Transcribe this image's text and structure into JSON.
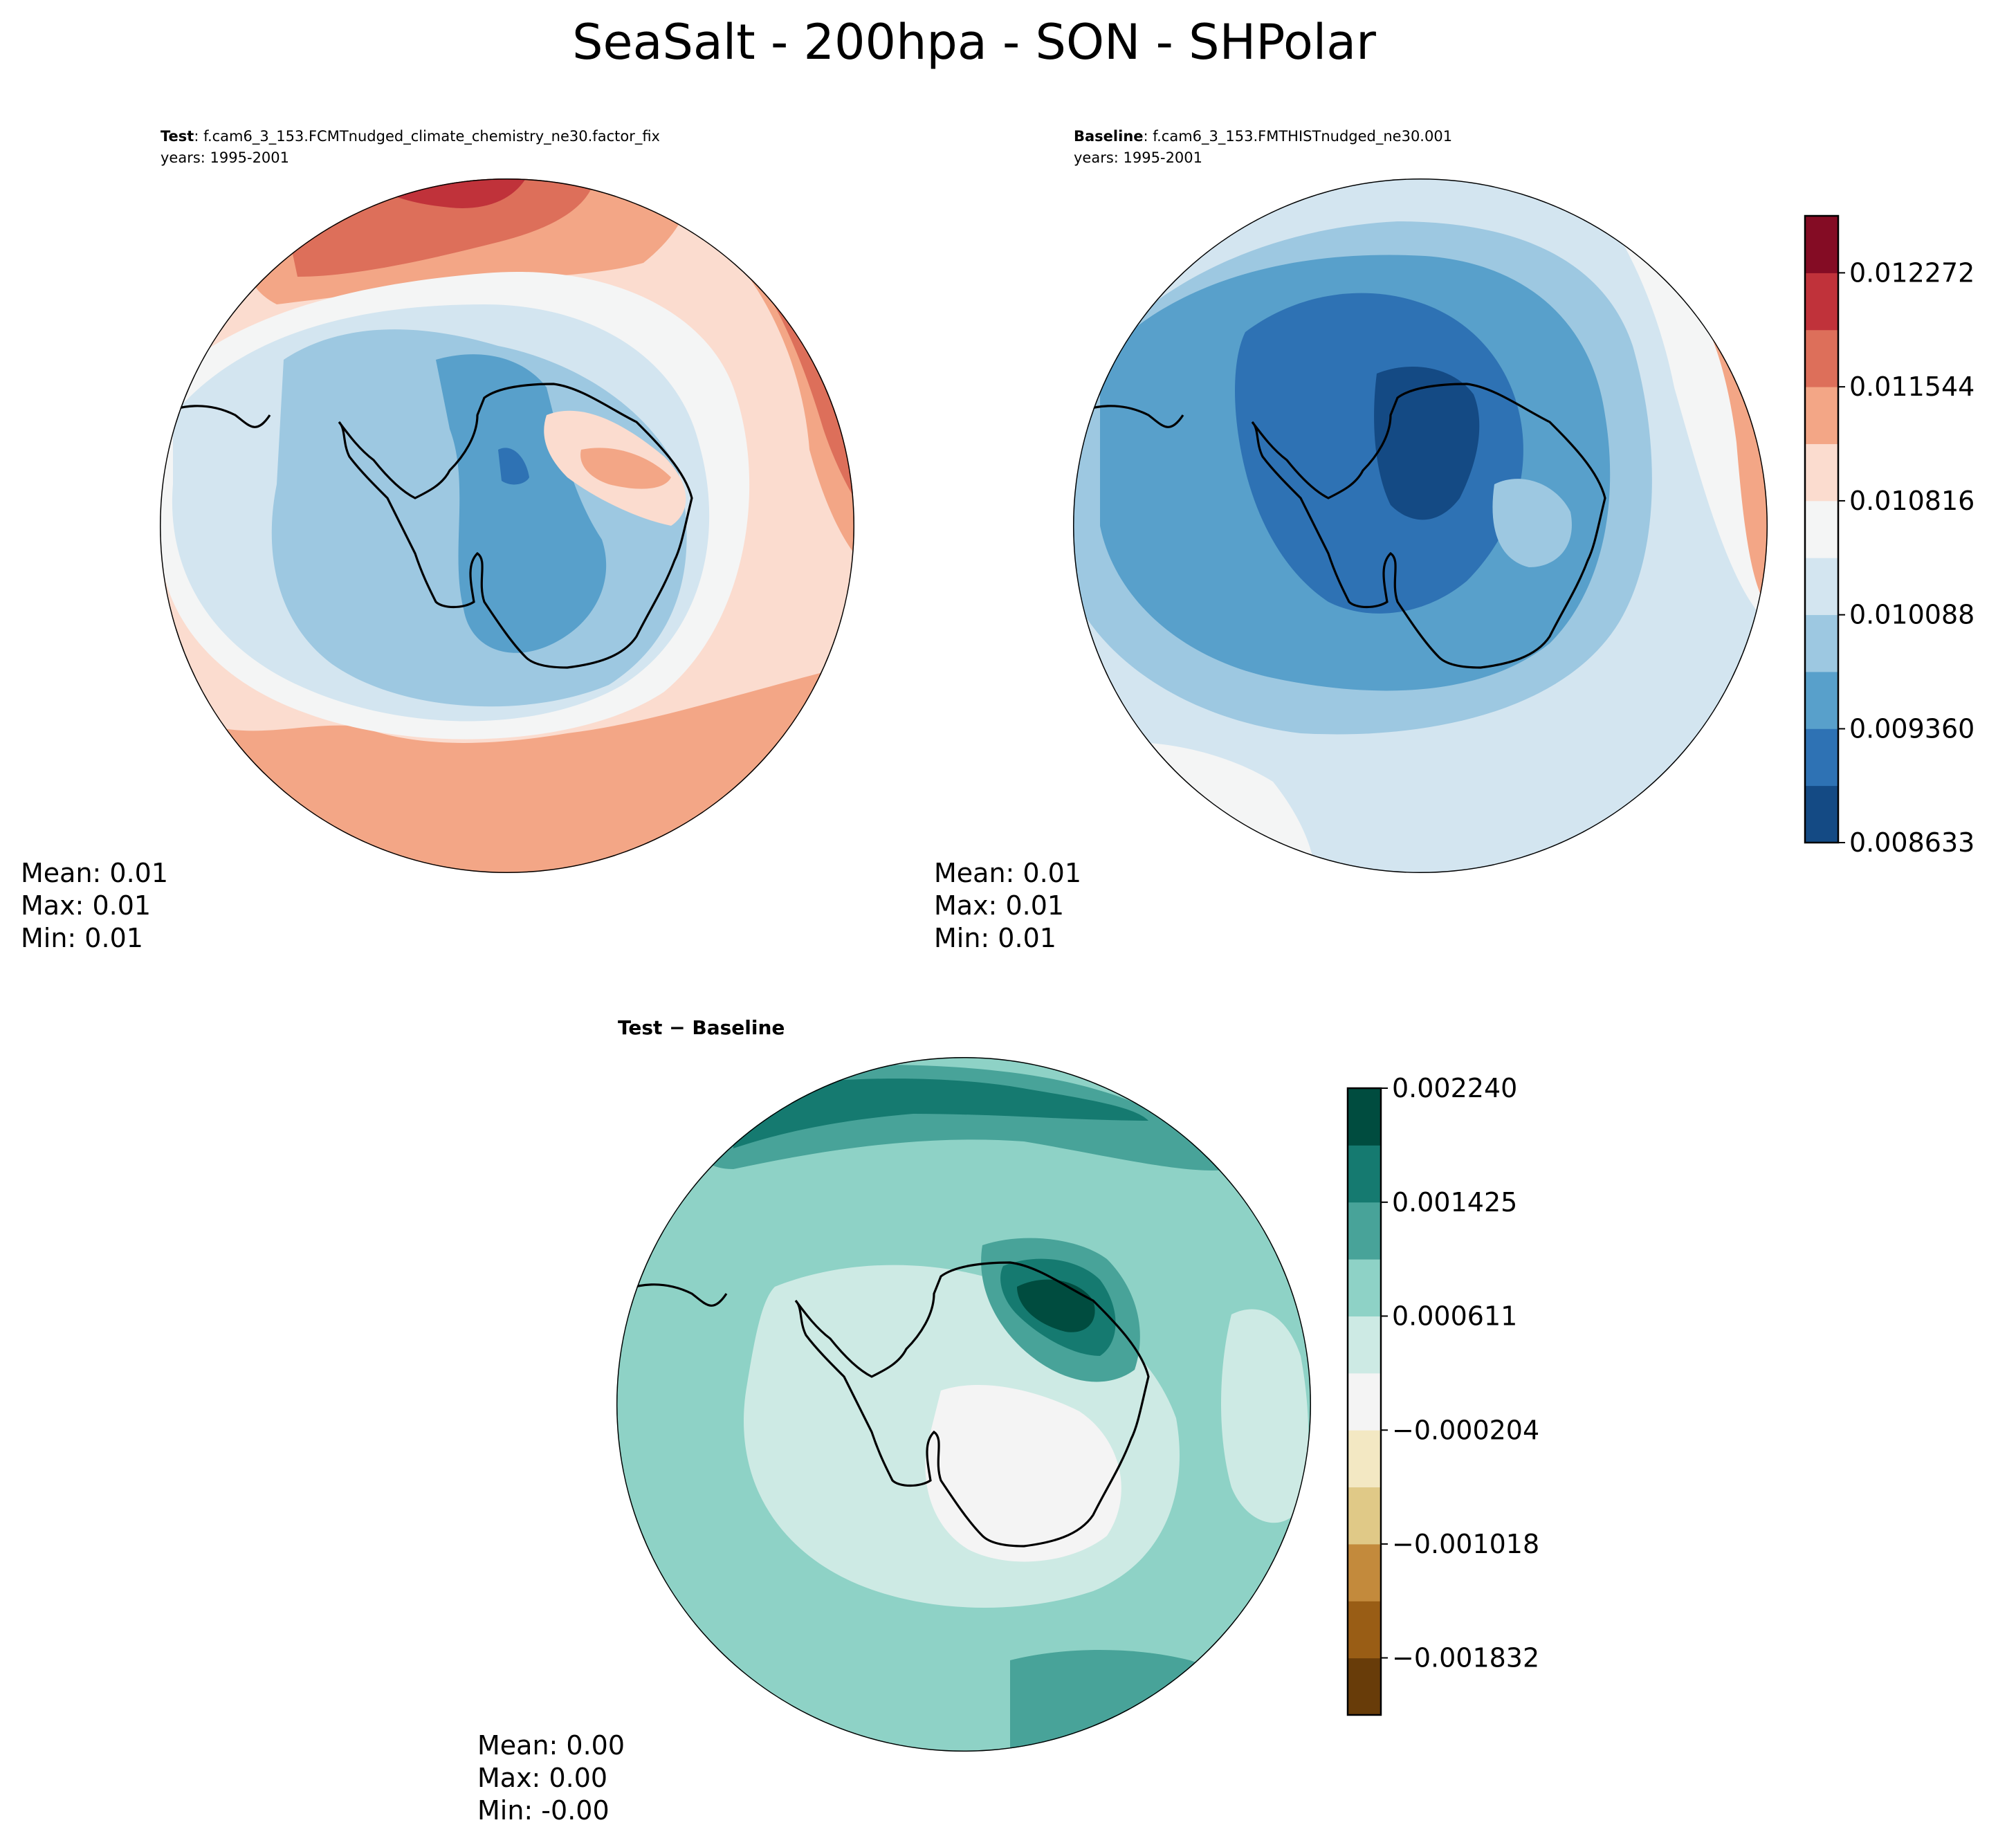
{
  "title": "SeaSalt - 200hpa - SON - SHPolar",
  "colors": {
    "rdbu": [
      "#144a84",
      "#2e72b4",
      "#58a0cb",
      "#9dc8e1",
      "#d3e5f0",
      "#f4f5f5",
      "#fbdccf",
      "#f3a686",
      "#dd6f5a",
      "#c0323a",
      "#840c24"
    ],
    "brbg": [
      "#683c09",
      "#995d15",
      "#c38a3c",
      "#e0c987",
      "#f3e8c3",
      "#f4f4f4",
      "#cdeae4",
      "#8ed2c6",
      "#48a399",
      "#157a70",
      "#004c3f"
    ],
    "coast": "#000000"
  },
  "panels": {
    "test": {
      "label": "Test",
      "case": ": f.cam6_3_153.FCMTnudged_climate_chemistry_ne30.factor_fix",
      "years": "years: 1995-2001",
      "mean": "Mean:  0.01",
      "max": "Max:  0.01",
      "min": "Min:  0.01"
    },
    "baseline": {
      "label": "Baseline",
      "case": ": f.cam6_3_153.FMTHISTnudged_ne30.001",
      "years": "years: 1995-2001",
      "mean": "Mean:  0.01",
      "max": "Max:  0.01",
      "min": "Min:  0.01"
    },
    "diff": {
      "label": "Test − Baseline",
      "mean": "Mean:  0.00",
      "max": "Max:  0.00",
      "min": "Min: -0.00"
    }
  },
  "chart_data": [
    {
      "type": "contourf",
      "panel": "Test",
      "projection": "south polar stereographic",
      "colormap": "RdBu_r",
      "levels_min": 0.008633,
      "levels_max": 0.012636,
      "num_levels": 12,
      "tick_labels": [
        "0.008633",
        "0.009360",
        "0.010088",
        "0.010816",
        "0.011544",
        "0.012272"
      ],
      "stats": {
        "mean": 0.01,
        "max": 0.01,
        "min": 0.01
      }
    },
    {
      "type": "contourf",
      "panel": "Baseline",
      "projection": "south polar stereographic",
      "colormap": "RdBu_r",
      "levels_min": 0.008633,
      "levels_max": 0.012636,
      "num_levels": 12,
      "tick_labels": [
        "0.008633",
        "0.009360",
        "0.010088",
        "0.010816",
        "0.011544",
        "0.012272"
      ],
      "colorbar_ticks": [
        0.008633,
        0.00936,
        0.010088,
        0.010816,
        0.011544,
        0.012272
      ],
      "stats": {
        "mean": 0.01,
        "max": 0.01,
        "min": 0.01
      }
    },
    {
      "type": "contourf",
      "panel": "Test − Baseline",
      "projection": "south polar stereographic",
      "colormap": "BrBG",
      "levels_min": -0.00224,
      "levels_max": 0.00224,
      "num_levels": 12,
      "tick_labels": [
        "−0.001832",
        "−0.001018",
        "−0.000204",
        "0.000611",
        "0.001425",
        "0.002240"
      ],
      "colorbar_ticks": [
        -0.001832,
        -0.001018,
        -0.000204,
        0.000611,
        0.001425,
        0.00224
      ],
      "stats": {
        "mean": 0.0,
        "max": 0.0,
        "min": 0.0
      }
    }
  ]
}
